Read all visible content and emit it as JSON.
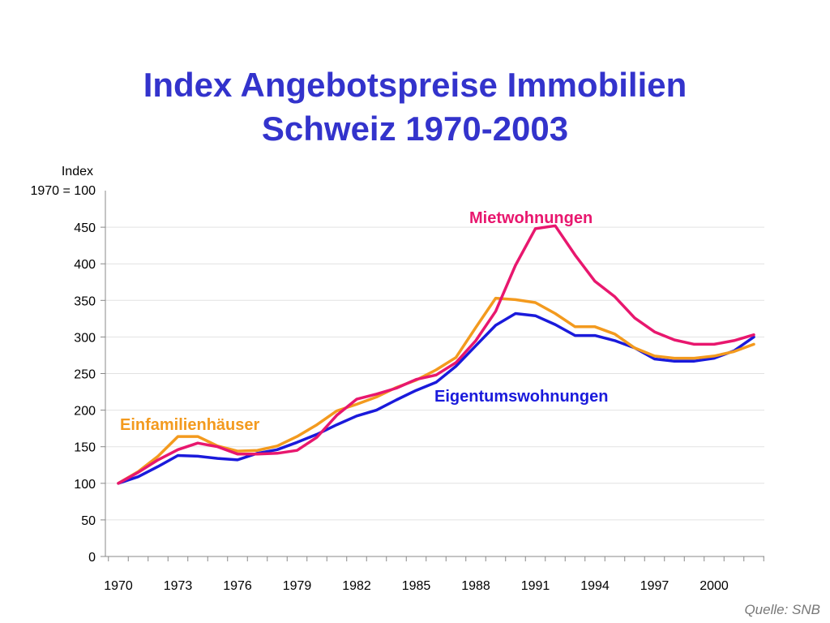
{
  "title_line1": "Index Angebotspreise Immobilien",
  "title_line2": "Schweiz 1970-2003",
  "source": "Quelle: SNB",
  "chart_data": {
    "type": "line",
    "title": "Index Angebotspreise Immobilien Schweiz 1970-2003",
    "ylabel_line1": "Index",
    "ylabel_line2": "1970 = 100",
    "ylim": [
      0,
      500
    ],
    "yticks": [
      0,
      50,
      100,
      150,
      200,
      250,
      300,
      350,
      400,
      450
    ],
    "xlim": [
      1970,
      2003
    ],
    "xtick_labels": [
      "1970",
      "1973",
      "1976",
      "1979",
      "1982",
      "1985",
      "1988",
      "1991",
      "1994",
      "1997",
      "2000"
    ],
    "grid": true,
    "x": [
      1970,
      1971,
      1972,
      1973,
      1974,
      1975,
      1976,
      1977,
      1978,
      1979,
      1980,
      1981,
      1982,
      1983,
      1984,
      1985,
      1986,
      1987,
      1988,
      1989,
      1990,
      1991,
      1992,
      1993,
      1994,
      1995,
      1996,
      1997,
      1998,
      1999,
      2000,
      2001,
      2002
    ],
    "series": [
      {
        "name": "Mietwohnungen",
        "color": "#e8176e",
        "values": [
          100,
          115,
          132,
          146,
          155,
          150,
          140,
          140,
          141,
          145,
          163,
          193,
          215,
          222,
          230,
          242,
          248,
          265,
          295,
          335,
          398,
          448,
          452,
          412,
          376,
          355,
          326,
          307,
          296,
          290,
          290,
          295,
          303
        ]
      },
      {
        "name": "Eigentumswohnungen",
        "color": "#1a1adb",
        "values": [
          100,
          109,
          123,
          138,
          137,
          134,
          132,
          141,
          146,
          156,
          167,
          180,
          192,
          200,
          214,
          227,
          238,
          260,
          288,
          316,
          332,
          329,
          317,
          302,
          302,
          295,
          285,
          270,
          267,
          267,
          271,
          281,
          300
        ]
      },
      {
        "name": "Einfamilienhäuser",
        "color": "#f39a1e",
        "values": [
          100,
          116,
          137,
          164,
          164,
          151,
          144,
          145,
          151,
          164,
          180,
          199,
          208,
          218,
          231,
          241,
          255,
          272,
          313,
          353,
          351,
          347,
          332,
          314,
          314,
          304,
          285,
          274,
          271,
          271,
          274,
          280,
          290
        ]
      }
    ]
  }
}
